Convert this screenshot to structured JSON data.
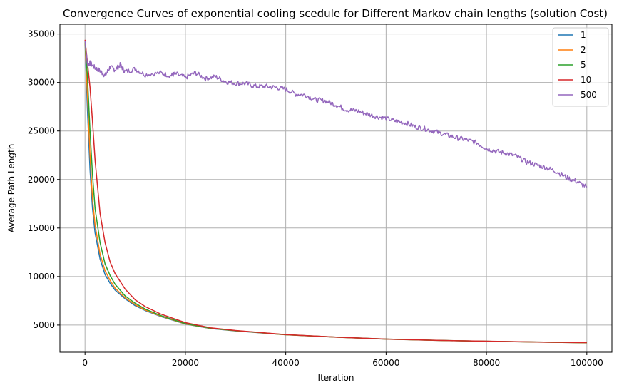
{
  "chart_data": {
    "type": "line",
    "title": "Convergence Curves of exponential cooling scedule for Different Markov chain lengths (solution Cost)",
    "xlabel": "Iteration",
    "ylabel": "Average Path Length",
    "xlim": [
      -5000,
      105000
    ],
    "ylim": [
      2200,
      36000
    ],
    "xticks": [
      0,
      20000,
      40000,
      60000,
      80000,
      100000
    ],
    "xtick_labels": [
      "0",
      "20000",
      "40000",
      "60000",
      "80000",
      "100000"
    ],
    "yticks": [
      5000,
      10000,
      15000,
      20000,
      25000,
      30000,
      35000
    ],
    "ytick_labels": [
      "5000",
      "10000",
      "15000",
      "20000",
      "25000",
      "30000",
      "35000"
    ],
    "grid": true,
    "legend_position": "top-right",
    "series": [
      {
        "name": "1",
        "color": "#1f77b4",
        "x": [
          0,
          500,
          1000,
          1500,
          2000,
          3000,
          4000,
          5000,
          6000,
          8000,
          10000,
          12000,
          15000,
          20000,
          25000,
          30000,
          40000,
          50000,
          60000,
          70000,
          80000,
          90000,
          100000
        ],
        "values": [
          34300,
          27000,
          21000,
          17000,
          14500,
          11800,
          10200,
          9300,
          8600,
          7700,
          7000,
          6500,
          5900,
          5100,
          4650,
          4400,
          4000,
          3750,
          3550,
          3420,
          3330,
          3250,
          3180
        ]
      },
      {
        "name": "2",
        "color": "#ff7f0e",
        "x": [
          0,
          500,
          1000,
          1500,
          2000,
          3000,
          4000,
          5000,
          6000,
          8000,
          10000,
          12000,
          15000,
          20000,
          25000,
          30000,
          40000,
          50000,
          60000,
          70000,
          80000,
          90000,
          100000
        ],
        "values": [
          34300,
          28500,
          22500,
          18000,
          15300,
          12300,
          10600,
          9600,
          8800,
          7800,
          7100,
          6550,
          5950,
          5120,
          4660,
          4410,
          4000,
          3750,
          3550,
          3420,
          3330,
          3250,
          3180
        ]
      },
      {
        "name": "5",
        "color": "#2ca02c",
        "x": [
          0,
          500,
          1000,
          1500,
          2000,
          3000,
          4000,
          5000,
          6000,
          8000,
          10000,
          12000,
          15000,
          20000,
          25000,
          30000,
          40000,
          50000,
          60000,
          70000,
          80000,
          90000,
          100000
        ],
        "values": [
          34300,
          30500,
          25000,
          20500,
          17000,
          13500,
          11300,
          10100,
          9200,
          8000,
          7250,
          6650,
          6000,
          5150,
          4680,
          4420,
          4010,
          3760,
          3560,
          3425,
          3335,
          3255,
          3185
        ]
      },
      {
        "name": "10",
        "color": "#d62728",
        "x": [
          0,
          500,
          1000,
          1500,
          2000,
          3000,
          4000,
          5000,
          6000,
          8000,
          10000,
          12000,
          15000,
          20000,
          25000,
          30000,
          40000,
          50000,
          60000,
          70000,
          80000,
          90000,
          100000
        ],
        "values": [
          34400,
          32000,
          29500,
          26000,
          22000,
          16500,
          13500,
          11500,
          10300,
          8700,
          7600,
          6900,
          6150,
          5250,
          4720,
          4440,
          4020,
          3760,
          3560,
          3430,
          3340,
          3260,
          3190
        ]
      },
      {
        "name": "500",
        "color": "#9467bd",
        "x": [
          0,
          500,
          1000,
          2000,
          3000,
          4000,
          5000,
          6000,
          7000,
          8000,
          10000,
          12000,
          15000,
          17000,
          18000,
          20000,
          22000,
          24000,
          26000,
          28000,
          30000,
          32000,
          34000,
          36000,
          38000,
          40000,
          42000,
          44000,
          46000,
          48000,
          50000,
          52000,
          54000,
          56000,
          58000,
          60000,
          62000,
          64000,
          66000,
          68000,
          70000,
          72000,
          74000,
          76000,
          78000,
          80000,
          82000,
          84000,
          86000,
          88000,
          90000,
          92000,
          94000,
          96000,
          98000,
          100000
        ],
        "values": [
          34300,
          31800,
          32000,
          31500,
          31200,
          30700,
          31600,
          31300,
          31800,
          31100,
          31400,
          30800,
          31000,
          30700,
          30900,
          30500,
          31000,
          30400,
          30600,
          30100,
          29900,
          29900,
          29600,
          29600,
          29500,
          29300,
          28800,
          28700,
          28200,
          28100,
          27700,
          27200,
          27100,
          26800,
          26500,
          26300,
          26000,
          25800,
          25400,
          25200,
          24900,
          24600,
          24300,
          24100,
          23800,
          23200,
          22900,
          22700,
          22400,
          21800,
          21500,
          21200,
          20800,
          20200,
          19800,
          19200
        ]
      }
    ]
  }
}
